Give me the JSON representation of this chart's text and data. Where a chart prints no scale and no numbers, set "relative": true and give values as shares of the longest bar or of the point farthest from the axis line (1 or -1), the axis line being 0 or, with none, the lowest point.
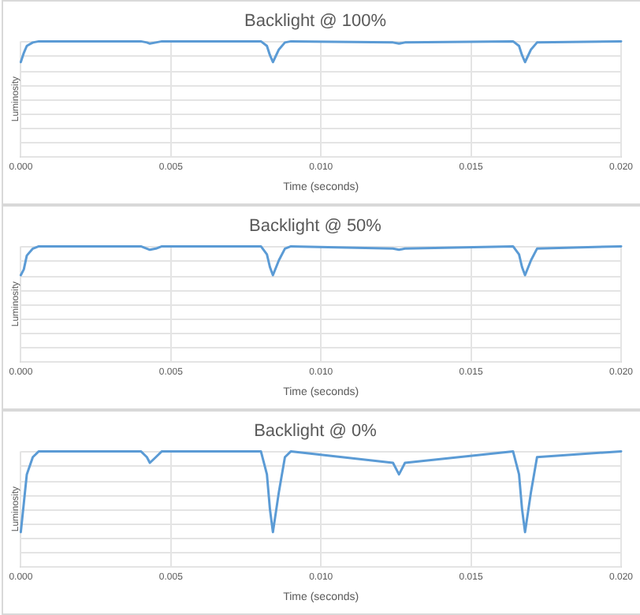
{
  "chart_data": [
    {
      "type": "line",
      "title": "Backlight @ 100%",
      "xlabel": "Time (seconds)",
      "ylabel": "Luminosity",
      "relative": true,
      "grid": true,
      "tick_labels": "x",
      "marker": "none",
      "line_style": "solid",
      "xlim": [
        0,
        0.02
      ],
      "xticks": [
        {
          "value": 0,
          "label": "0.000"
        },
        {
          "value": 0.005,
          "label": "0.005"
        },
        {
          "value": 0.01,
          "label": "0.010"
        },
        {
          "value": 0.015,
          "label": "0.015"
        },
        {
          "value": 0.02,
          "label": "0.020"
        }
      ],
      "x": [
        0,
        0.0001,
        0.0002,
        0.0004,
        0.0006,
        0.001,
        0.004,
        0.0042,
        0.0043,
        0.0045,
        0.0047,
        0.005,
        0.008,
        0.0082,
        0.0083,
        0.0084,
        0.0086,
        0.0088,
        0.009,
        0.0124,
        0.0126,
        0.0128,
        0.0164,
        0.0166,
        0.0167,
        0.0168,
        0.017,
        0.0172,
        0.02
      ],
      "series": [
        {
          "color": "#5b9bd5",
          "values": [
            0.82,
            0.9,
            0.96,
            0.99,
            1,
            1,
            1,
            0.99,
            0.98,
            0.99,
            1,
            1,
            1,
            0.96,
            0.88,
            0.82,
            0.93,
            0.99,
            1,
            0.99,
            0.98,
            0.99,
            1,
            0.96,
            0.88,
            0.82,
            0.93,
            0.99,
            1
          ]
        }
      ]
    },
    {
      "type": "line",
      "title": "Backlight @ 50%",
      "xlabel": "Time (seconds)",
      "ylabel": "Luminosity",
      "relative": true,
      "grid": true,
      "tick_labels": "x",
      "marker": "none",
      "line_style": "solid",
      "xlim": [
        0,
        0.02
      ],
      "xticks": [
        {
          "value": 0,
          "label": "0.000"
        },
        {
          "value": 0.005,
          "label": "0.005"
        },
        {
          "value": 0.01,
          "label": "0.010"
        },
        {
          "value": 0.015,
          "label": "0.015"
        },
        {
          "value": 0.02,
          "label": "0.020"
        }
      ],
      "x": [
        0,
        0.0001,
        0.0002,
        0.0004,
        0.0006,
        0.001,
        0.004,
        0.0042,
        0.0043,
        0.0045,
        0.0047,
        0.005,
        0.008,
        0.0082,
        0.0083,
        0.0084,
        0.0086,
        0.0088,
        0.009,
        0.0124,
        0.0126,
        0.0128,
        0.0164,
        0.0166,
        0.0167,
        0.0168,
        0.017,
        0.0172,
        0.02
      ],
      "series": [
        {
          "color": "#5b9bd5",
          "values": [
            0.75,
            0.8,
            0.92,
            0.98,
            1,
            1,
            1,
            0.98,
            0.97,
            0.98,
            1,
            1,
            1,
            0.93,
            0.82,
            0.75,
            0.88,
            0.98,
            1,
            0.98,
            0.97,
            0.98,
            1,
            0.93,
            0.82,
            0.75,
            0.88,
            0.98,
            1
          ]
        }
      ]
    },
    {
      "type": "line",
      "title": "Backlight @ 0%",
      "xlabel": "Time (seconds)",
      "ylabel": "Luminosity",
      "relative": true,
      "grid": true,
      "tick_labels": "x",
      "marker": "none",
      "line_style": "solid",
      "xlim": [
        0,
        0.02
      ],
      "xticks": [
        {
          "value": 0,
          "label": "0.000"
        },
        {
          "value": 0.005,
          "label": "0.005"
        },
        {
          "value": 0.01,
          "label": "0.010"
        },
        {
          "value": 0.015,
          "label": "0.015"
        },
        {
          "value": 0.02,
          "label": "0.020"
        }
      ],
      "x": [
        0,
        0.0001,
        0.0002,
        0.0004,
        0.0006,
        0.001,
        0.004,
        0.0042,
        0.0043,
        0.0045,
        0.0047,
        0.005,
        0.008,
        0.0082,
        0.0083,
        0.0084,
        0.0086,
        0.0088,
        0.009,
        0.0124,
        0.0126,
        0.0128,
        0.0164,
        0.0166,
        0.0167,
        0.0168,
        0.017,
        0.0172,
        0.02
      ],
      "series": [
        {
          "color": "#5b9bd5",
          "values": [
            0.3,
            0.55,
            0.8,
            0.95,
            1,
            1,
            1,
            0.95,
            0.9,
            0.95,
            1,
            1,
            1,
            0.8,
            0.5,
            0.3,
            0.65,
            0.95,
            1,
            0.9,
            0.8,
            0.9,
            1,
            0.8,
            0.5,
            0.3,
            0.65,
            0.95,
            1
          ]
        }
      ]
    }
  ]
}
